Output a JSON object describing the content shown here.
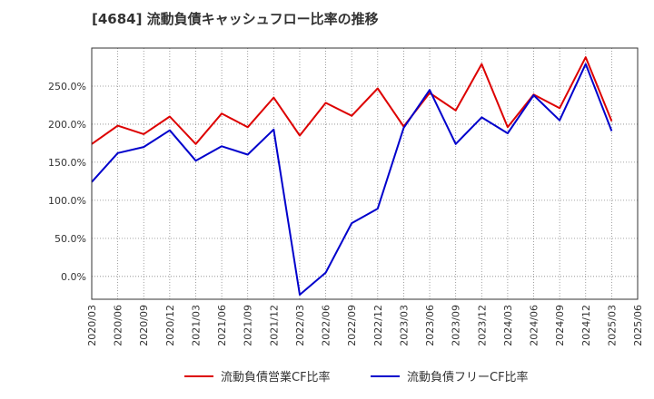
{
  "chart_data": {
    "type": "line",
    "title": "[4684]  流動負債キャッシュフロー比率の推移",
    "xlabel": "",
    "ylabel": "",
    "ylim": [
      -30,
      300
    ],
    "y_ticks": [
      0,
      50,
      100,
      150,
      200,
      250
    ],
    "y_tick_labels": [
      "0.0%",
      "50.0%",
      "100.0%",
      "150.0%",
      "200.0%",
      "250.0%"
    ],
    "x_ticks": [
      "2020/03",
      "2020/06",
      "2020/09",
      "2020/12",
      "2021/03",
      "2021/06",
      "2021/09",
      "2021/12",
      "2022/03",
      "2022/06",
      "2022/09",
      "2022/12",
      "2023/03",
      "2023/06",
      "2023/09",
      "2023/12",
      "2024/03",
      "2024/06",
      "2024/09",
      "2024/12",
      "2025/03",
      "2025/06"
    ],
    "grid": true,
    "legend_position": "bottom",
    "series": [
      {
        "name": "流動負債営業CF比率",
        "color": "#dd0000",
        "x": [
          "2020/03",
          "2020/06",
          "2020/09",
          "2020/12",
          "2021/03",
          "2021/06",
          "2021/09",
          "2021/12",
          "2022/03",
          "2022/06",
          "2022/09",
          "2022/12",
          "2023/03",
          "2023/06",
          "2023/09",
          "2023/12",
          "2024/03",
          "2024/06",
          "2024/09",
          "2024/12",
          "2025/03"
        ],
        "values": [
          174,
          198,
          187,
          210,
          174,
          214,
          196,
          235,
          185,
          228,
          211,
          247,
          197,
          241,
          218,
          279,
          196,
          239,
          221,
          288,
          204
        ]
      },
      {
        "name": "流動負債フリーCF比率",
        "color": "#0000cc",
        "x": [
          "2020/03",
          "2020/06",
          "2020/09",
          "2020/12",
          "2021/03",
          "2021/06",
          "2021/09",
          "2021/12",
          "2022/03",
          "2022/06",
          "2022/09",
          "2022/12",
          "2023/03",
          "2023/06",
          "2023/09",
          "2023/12",
          "2024/03",
          "2024/06",
          "2024/09",
          "2024/12",
          "2025/03"
        ],
        "values": [
          124,
          162,
          170,
          192,
          152,
          171,
          160,
          193,
          -24,
          5,
          70,
          89,
          195,
          245,
          174,
          209,
          188,
          238,
          205,
          279,
          191
        ]
      }
    ]
  }
}
